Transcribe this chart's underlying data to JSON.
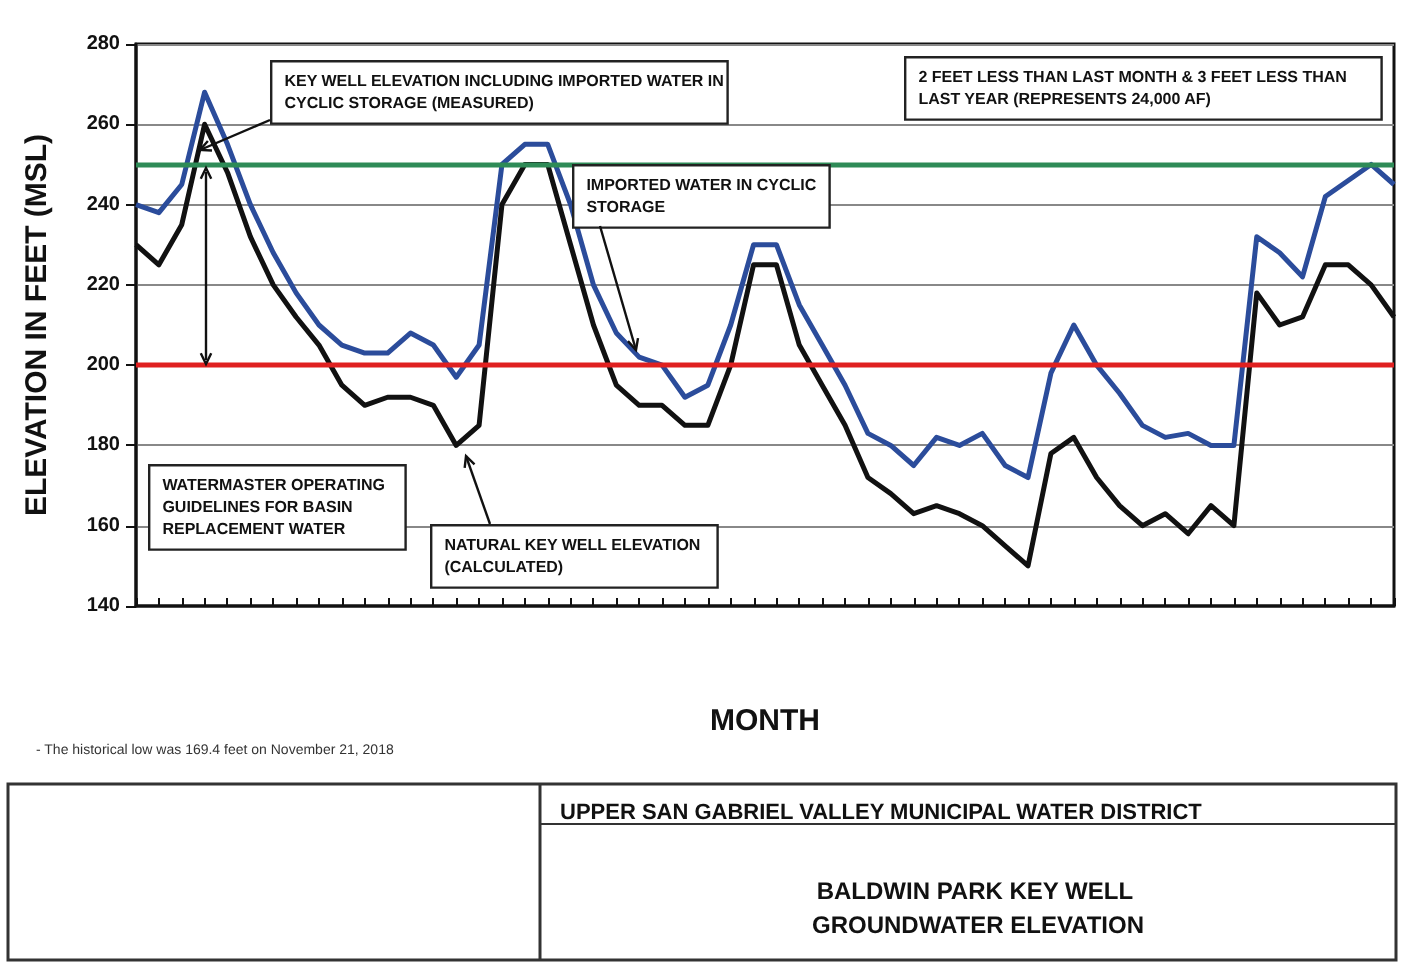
{
  "chart_data": {
    "type": "line",
    "title": "UPPER SAN GABRIEL VALLEY MUNICIPAL WATER DISTRICT",
    "subtitle": "BALDWIN PARK KEY WELL GROUNDWATER ELEVATION",
    "xlabel": "MONTH",
    "ylabel": "ELEVATION IN FEET (MSL)",
    "categories": [
      null,
      null,
      null,
      null,
      null,
      null,
      null,
      null,
      null,
      null,
      null,
      null,
      null,
      null,
      null,
      null,
      null,
      null,
      null,
      null,
      null,
      null,
      null,
      null,
      null,
      null,
      null,
      null,
      null,
      null,
      null,
      null,
      null,
      null,
      null,
      null,
      null,
      null,
      null,
      null,
      null,
      null,
      null,
      null,
      null,
      null,
      null,
      null,
      null,
      null,
      null,
      null,
      null,
      null,
      null,
      null
    ],
    "series": [
      {
        "color": "#2b4c9b",
        "values": [
          240,
          238,
          245,
          268,
          255,
          240,
          228,
          218,
          210,
          205,
          203,
          203,
          208,
          205,
          197,
          205,
          250,
          255,
          255,
          240,
          220,
          208,
          202,
          200,
          192,
          195,
          210,
          230,
          230,
          215,
          205,
          195,
          183,
          180,
          175,
          182,
          180,
          183,
          175,
          172,
          198,
          210,
          200,
          193,
          185,
          182,
          183,
          180,
          180,
          232,
          228,
          222,
          242,
          246,
          250,
          245
        ]
      },
      {
        "color": "#111111",
        "values": [
          230,
          225,
          235,
          260,
          248,
          232,
          220,
          212,
          205,
          195,
          190,
          192,
          192,
          190,
          180,
          185,
          240,
          250,
          250,
          230,
          210,
          195,
          190,
          190,
          185,
          185,
          200,
          225,
          225,
          205,
          195,
          185,
          172,
          168,
          163,
          165,
          163,
          160,
          155,
          150,
          178,
          182,
          172,
          165,
          160,
          163,
          158,
          165,
          160,
          218,
          210,
          212,
          225,
          225,
          220,
          212
        ]
      }
    ],
    "ylim": [
      140,
      280
    ],
    "yticks": [
      140,
      160,
      180,
      200,
      220,
      240,
      260,
      280
    ],
    "grid": "y",
    "marker": "none",
    "line_style": "solid",
    "ref_lines": [
      {
        "axis": "y",
        "value": 250,
        "color": "#2e8b57"
      },
      {
        "axis": "y",
        "value": 200,
        "color": "#e02020"
      }
    ],
    "annotations": [
      "KEY WELL ELEVATION INCLUDING IMPORTED WATER IN CYCLIC STORAGE (MEASURED)",
      "WATERMASTER OPERATING GUIDELINES FOR BASIN REPLACEMENT WATER",
      "IMPORTED WATER IN CYCLIC STORAGE",
      "NATURAL KEY WELL ELEVATION (CALCULATED)",
      "2 FEET LESS THAN LAST MONTH & 3 FEET LESS THAN LAST YEAR (REPRESENTS 24,000 AF)",
      "- The historical low was 169.4 feet on November 21, 2018"
    ]
  }
}
